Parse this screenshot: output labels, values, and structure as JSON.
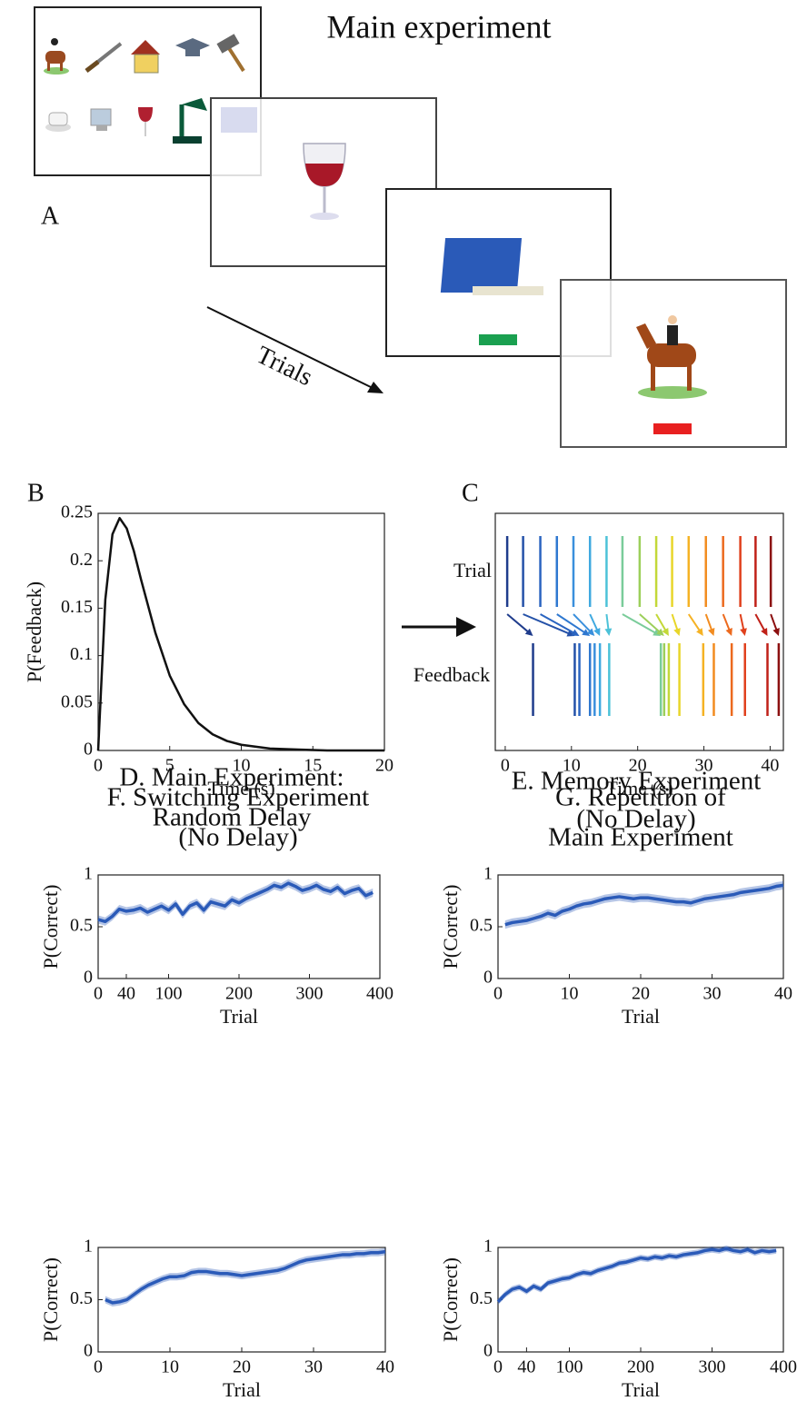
{
  "panel_a": {
    "label": "A",
    "title": "Main experiment",
    "arrow_label": "Trials"
  },
  "chart_data": [
    {
      "type": "line",
      "label": "B",
      "x_label": "Time (s)",
      "y_label": "P(Feedback)",
      "x": [
        0,
        0.5,
        1,
        1.5,
        2,
        2.5,
        3,
        4,
        5,
        6,
        7,
        8,
        9,
        10,
        12,
        14,
        16,
        20
      ],
      "values": [
        0,
        0.159,
        0.228,
        0.245,
        0.234,
        0.21,
        0.18,
        0.124,
        0.079,
        0.049,
        0.029,
        0.017,
        0.01,
        0.006,
        0.002,
        0.001,
        0,
        0
      ],
      "color": "#111111",
      "xlim": [
        0,
        20
      ],
      "ylim": [
        0,
        0.25
      ],
      "xticks": [
        0,
        5,
        10,
        15,
        20
      ],
      "yticks": [
        0,
        0.05,
        0.1,
        0.15,
        0.2,
        0.25
      ]
    },
    {
      "type": "event",
      "label": "C",
      "x_label": "Time (s)",
      "row_labels": [
        "Trial",
        "Feedback"
      ],
      "trial_times": [
        0.3,
        2.7,
        5.3,
        7.8,
        10.3,
        12.8,
        15.3,
        17.7,
        20.3,
        22.8,
        25.2,
        27.7,
        30.3,
        32.9,
        35.5,
        37.8,
        40.1
      ],
      "feedback_times": [
        4.2,
        10.5,
        11.2,
        12.8,
        13.5,
        14.3,
        15.7,
        23.5,
        24.0,
        24.7,
        26.3,
        29.9,
        31.5,
        34.2,
        36.2,
        39.6,
        41.3
      ],
      "colors": [
        "#1f3c8c",
        "#2451a8",
        "#2a64c0",
        "#2f78d0",
        "#3a8fdc",
        "#3fa9e0",
        "#4cc2d8",
        "#7acc9a",
        "#9ccf5a",
        "#c3d838",
        "#e8d62a",
        "#f5b224",
        "#f28c20",
        "#ec6a1e",
        "#e0401c",
        "#c02018",
        "#8c1010"
      ],
      "xlim": [
        -1.5,
        42
      ],
      "xticks": [
        0,
        10,
        20,
        30,
        40
      ]
    },
    {
      "type": "line",
      "title": [
        "D. Main Experiment:",
        "Random Delay"
      ],
      "x_label": "Trial",
      "y_label": "P(Correct)",
      "x": [
        0,
        10,
        20,
        30,
        40,
        50,
        60,
        70,
        80,
        90,
        100,
        110,
        120,
        130,
        140,
        150,
        160,
        170,
        180,
        190,
        200,
        210,
        220,
        230,
        240,
        250,
        260,
        270,
        280,
        290,
        300,
        310,
        320,
        330,
        340,
        350,
        360,
        370,
        380,
        390
      ],
      "values": [
        0.57,
        0.55,
        0.6,
        0.67,
        0.65,
        0.66,
        0.68,
        0.64,
        0.67,
        0.7,
        0.66,
        0.72,
        0.62,
        0.7,
        0.73,
        0.66,
        0.74,
        0.72,
        0.7,
        0.76,
        0.73,
        0.77,
        0.8,
        0.83,
        0.86,
        0.9,
        0.88,
        0.92,
        0.89,
        0.85,
        0.87,
        0.9,
        0.86,
        0.84,
        0.88,
        0.82,
        0.85,
        0.87,
        0.8,
        0.83
      ],
      "error": 0.04,
      "color": "#2a5ab8",
      "xlim": [
        0,
        400
      ],
      "ylim": [
        0,
        1
      ],
      "xticks": [
        0,
        40,
        100,
        200,
        300,
        400
      ],
      "yticks": [
        0,
        0.5,
        1
      ]
    },
    {
      "type": "line",
      "title": [
        "E. Memory Experiment",
        "(No Delay)"
      ],
      "x_label": "Trial",
      "y_label": "P(Correct)",
      "x": [
        1,
        2,
        3,
        4,
        5,
        6,
        7,
        8,
        9,
        10,
        11,
        12,
        13,
        14,
        15,
        16,
        17,
        18,
        19,
        20,
        21,
        22,
        23,
        24,
        25,
        26,
        27,
        28,
        29,
        30,
        31,
        32,
        33,
        34,
        35,
        36,
        37,
        38,
        39,
        40
      ],
      "values": [
        0.52,
        0.54,
        0.55,
        0.56,
        0.58,
        0.6,
        0.63,
        0.61,
        0.65,
        0.67,
        0.7,
        0.72,
        0.73,
        0.75,
        0.77,
        0.78,
        0.79,
        0.78,
        0.77,
        0.78,
        0.78,
        0.77,
        0.76,
        0.75,
        0.74,
        0.74,
        0.73,
        0.75,
        0.77,
        0.78,
        0.79,
        0.8,
        0.81,
        0.83,
        0.84,
        0.85,
        0.86,
        0.87,
        0.89,
        0.9
      ],
      "error": 0.04,
      "color": "#2a5ab8",
      "xlim": [
        0,
        40
      ],
      "ylim": [
        0,
        1
      ],
      "xticks": [
        0,
        10,
        20,
        30,
        40
      ],
      "yticks": [
        0,
        0.5,
        1
      ]
    },
    {
      "type": "line",
      "title": [
        "F. Switching Experiment",
        "(No Delay)"
      ],
      "x_label": "Trial",
      "y_label": "P(Correct)",
      "x": [
        1,
        2,
        3,
        4,
        5,
        6,
        7,
        8,
        9,
        10,
        11,
        12,
        13,
        14,
        15,
        16,
        17,
        18,
        19,
        20,
        21,
        22,
        23,
        24,
        25,
        26,
        27,
        28,
        29,
        30,
        31,
        32,
        33,
        34,
        35,
        36,
        37,
        38,
        39,
        40
      ],
      "values": [
        0.5,
        0.47,
        0.48,
        0.5,
        0.55,
        0.6,
        0.64,
        0.67,
        0.7,
        0.72,
        0.72,
        0.73,
        0.76,
        0.77,
        0.77,
        0.76,
        0.75,
        0.75,
        0.74,
        0.73,
        0.74,
        0.75,
        0.76,
        0.77,
        0.78,
        0.8,
        0.83,
        0.86,
        0.88,
        0.89,
        0.9,
        0.91,
        0.92,
        0.93,
        0.93,
        0.94,
        0.94,
        0.95,
        0.95,
        0.96
      ],
      "error": 0.035,
      "color": "#2a5ab8",
      "xlim": [
        0,
        40
      ],
      "ylim": [
        0,
        1
      ],
      "xticks": [
        0,
        10,
        20,
        30,
        40
      ],
      "yticks": [
        0,
        0.5,
        1
      ]
    },
    {
      "type": "line",
      "title": [
        "G. Repetition of",
        "Main Experiment"
      ],
      "x_label": "Trial",
      "y_label": "P(Correct)",
      "x": [
        0,
        10,
        20,
        30,
        40,
        50,
        60,
        70,
        80,
        90,
        100,
        110,
        120,
        130,
        140,
        150,
        160,
        170,
        180,
        190,
        200,
        210,
        220,
        230,
        240,
        250,
        260,
        270,
        280,
        290,
        300,
        310,
        320,
        330,
        340,
        350,
        360,
        370,
        380,
        390
      ],
      "values": [
        0.48,
        0.55,
        0.6,
        0.62,
        0.58,
        0.63,
        0.6,
        0.66,
        0.68,
        0.7,
        0.71,
        0.74,
        0.76,
        0.75,
        0.78,
        0.8,
        0.82,
        0.85,
        0.86,
        0.88,
        0.9,
        0.89,
        0.91,
        0.9,
        0.92,
        0.91,
        0.93,
        0.94,
        0.95,
        0.97,
        0.98,
        0.97,
        0.99,
        0.97,
        0.96,
        0.98,
        0.95,
        0.97,
        0.96,
        0.97
      ],
      "error": 0.03,
      "color": "#2a5ab8",
      "xlim": [
        0,
        400
      ],
      "ylim": [
        0,
        1
      ],
      "xticks": [
        0,
        40,
        100,
        200,
        300,
        400
      ],
      "yticks": [
        0,
        0.5,
        1
      ]
    }
  ]
}
